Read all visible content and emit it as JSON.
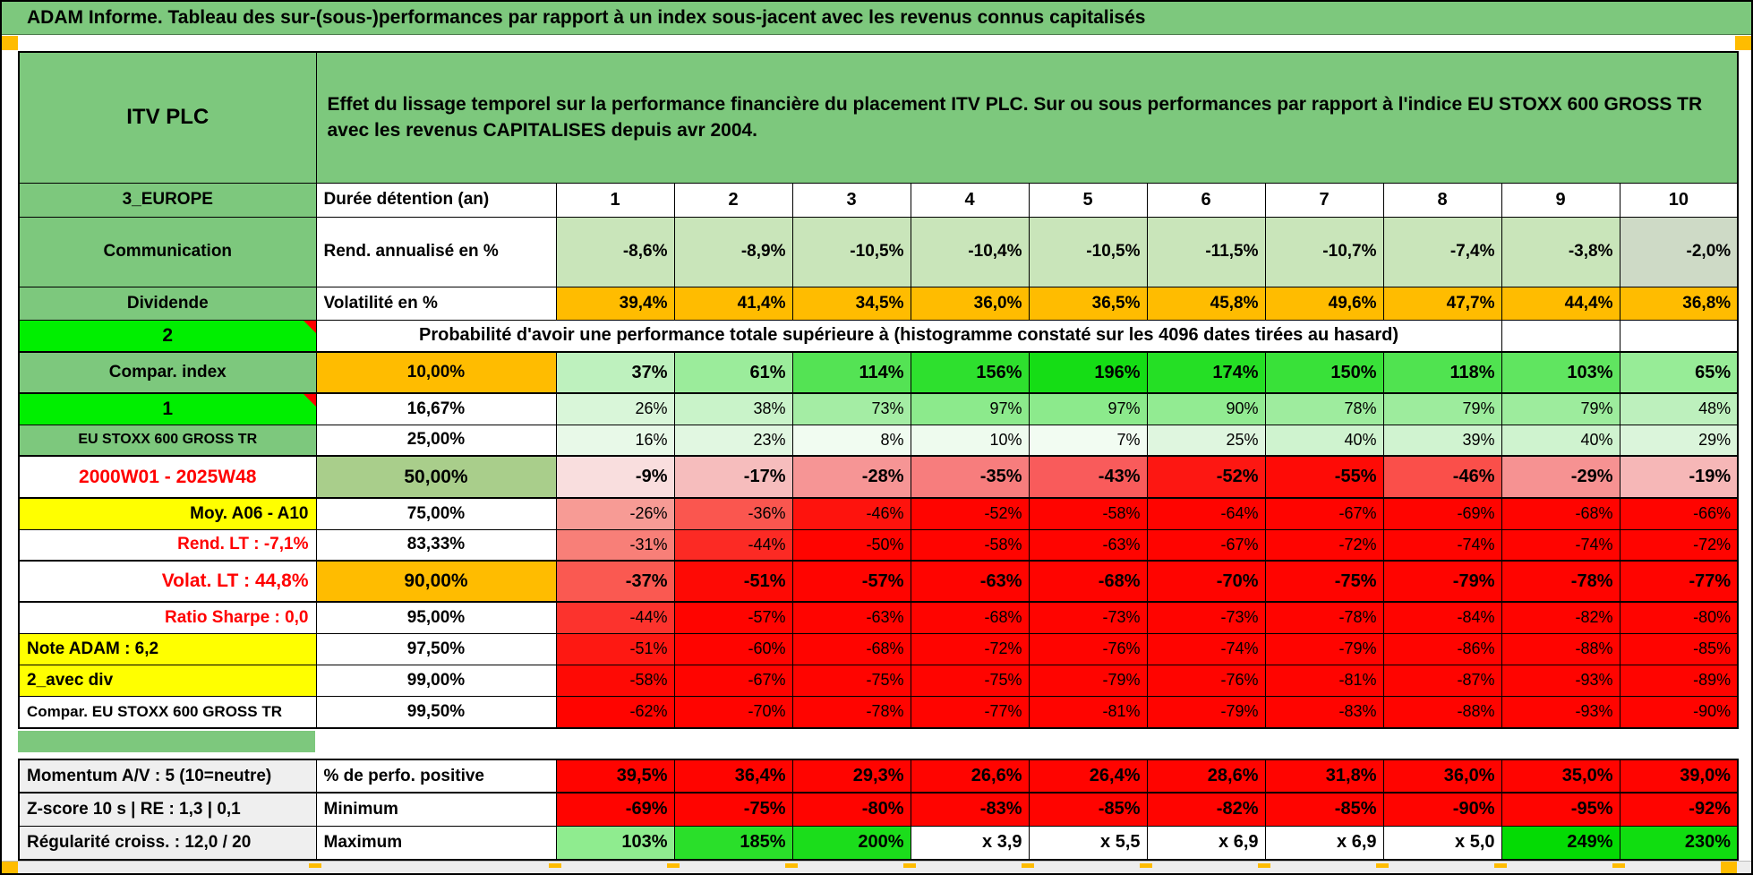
{
  "title_bar": "ADAM Informe. Tableau des sur-(sous-)performances par rapport à un index sous-jacent avec les revenus connus capitalisés",
  "header": {
    "instrument": "ITV PLC",
    "description": "Effet du lissage temporel sur la performance financière du placement ITV PLC. Sur ou sous performances par rapport à l'indice EU STOXX 600 GROSS TR avec les revenus CAPITALISES depuis avr 2004."
  },
  "colors": {
    "green_label": "#7DC87D",
    "bright_green": "#00EF00",
    "orange": "#FFBC00",
    "yellow": "#FFFF00",
    "full_red": "#FF0400",
    "light_green": "#C9E5BA",
    "mid_green_50pct": "#A9CE8B",
    "gray_label": "#EFEFEF",
    "red_text": "#FF0000"
  },
  "durations_label": "Durée détention (an)",
  "proba_note": "Probabilité d'avoir une performance totale supérieure à (histogramme constaté sur les 4096 dates tirées au hasard)",
  "main_rows": [
    {
      "key": "durations",
      "label": "3_EUROPE",
      "label_style": "green",
      "param": "Durée détention (an)",
      "param_style": "left",
      "val_style": "hdr",
      "vals": [
        "1",
        "2",
        "3",
        "4",
        "5",
        "6",
        "7",
        "8",
        "9",
        "10"
      ],
      "vbg": "#FFFFFF"
    },
    {
      "key": "rend",
      "label": "Communication",
      "label_style": "green",
      "param": "Rend. annualisé en %",
      "param_style": "left",
      "val_style": "b19",
      "vals": [
        "-8,6%",
        "-8,9%",
        "-10,5%",
        "-10,4%",
        "-10,5%",
        "-11,5%",
        "-10,7%",
        "-7,4%",
        "-3,8%",
        "-2,0%"
      ],
      "bgs": [
        "#C9E5BA",
        "#C9E5BA",
        "#C9E5BA",
        "#C9E5BA",
        "#C9E5BA",
        "#C9E5BA",
        "#C9E5BA",
        "#C9E5BA",
        "#C9E5BA",
        "#CEDAC6"
      ]
    },
    {
      "key": "volat",
      "label": "Dividende",
      "label_style": "green",
      "param": "Volatilité en %",
      "param_style": "left",
      "val_style": "b19",
      "vals": [
        "39,4%",
        "41,4%",
        "34,5%",
        "36,0%",
        "36,5%",
        "45,8%",
        "49,6%",
        "47,7%",
        "44,4%",
        "36,8%"
      ],
      "vbg": "#FFBC00"
    },
    {
      "key": "proba",
      "label": "2",
      "label_style": "bright",
      "merged_note": true
    },
    {
      "key": "p10",
      "label": "Compar. index",
      "label_style": "green",
      "param": "10,00%",
      "param_style": "orange",
      "val_style": "bold",
      "vals": [
        "37%",
        "61%",
        "114%",
        "156%",
        "196%",
        "174%",
        "150%",
        "118%",
        "103%",
        "65%"
      ],
      "bgs": [
        "#BEF1BE",
        "#9BEC9B",
        "#54E354",
        "#2EE02E",
        "#15DD15",
        "#25DF25",
        "#39E139",
        "#50E350",
        "#60E560",
        "#97EC97"
      ]
    },
    {
      "key": "p16",
      "label": "1",
      "label_style": "bright",
      "param": "16,67%",
      "param_style": "center",
      "val_style": "normal",
      "vals": [
        "26%",
        "38%",
        "73%",
        "97%",
        "97%",
        "90%",
        "78%",
        "79%",
        "79%",
        "48%"
      ],
      "bgs": [
        "#D9F6D9",
        "#C9F3C9",
        "#A4EDA4",
        "#8CEA8C",
        "#8CEA8C",
        "#92EB92",
        "#9EEC9E",
        "#9DEC9D",
        "#9DEC9D",
        "#BDF0BD"
      ]
    },
    {
      "key": "p25",
      "label": "EU STOXX 600 GROSS TR",
      "label_style": "green_small",
      "param": "25,00%",
      "param_style": "center",
      "val_style": "normal",
      "vals": [
        "16%",
        "23%",
        "8%",
        "10%",
        "7%",
        "25%",
        "40%",
        "39%",
        "40%",
        "29%"
      ],
      "bgs": [
        "#E8F9E8",
        "#E1F7E1",
        "#F1FCF1",
        "#EEFBEE",
        "#F2FCF2",
        "#DFF6DF",
        "#CFF3CF",
        "#D0F3D0",
        "#CFF3CF",
        "#DBF5DB"
      ]
    },
    {
      "key": "p50",
      "label": "2000W01 - 2025W48",
      "label_style": "red_c",
      "param": "50,00%",
      "param_style": "green50",
      "val_style": "bold",
      "vals": [
        "-9%",
        "-17%",
        "-28%",
        "-35%",
        "-43%",
        "-52%",
        "-55%",
        "-46%",
        "-29%",
        "-19%"
      ],
      "bgs": [
        "#F9DEDE",
        "#F6BDBD",
        "#F69595",
        "#F77D7D",
        "#F95B5B",
        "#FD1712",
        "#FE0B06",
        "#FA4F4A",
        "#F69292",
        "#F6B7B7"
      ]
    },
    {
      "key": "p75",
      "label": "Moy. A06 - A10",
      "label_style": "yellow_r",
      "param": "75,00%",
      "param_style": "center",
      "val_style": "normal",
      "vals": [
        "-26%",
        "-36%",
        "-46%",
        "-52%",
        "-58%",
        "-64%",
        "-67%",
        "-69%",
        "-68%",
        "-66%"
      ],
      "bgs": [
        "#F79B95",
        "#FA564F",
        "#FE130D",
        "#FF0400",
        "#FF0400",
        "#FF0400",
        "#FF0400",
        "#FF0400",
        "#FF0400",
        "#FF0400"
      ]
    },
    {
      "key": "p83",
      "label": "Rend. LT :   -7,1%",
      "label_style": "red_r",
      "param": "83,33%",
      "param_style": "center",
      "val_style": "normal",
      "vals": [
        "-31%",
        "-44%",
        "-50%",
        "-58%",
        "-63%",
        "-67%",
        "-72%",
        "-74%",
        "-74%",
        "-72%"
      ],
      "bgs": [
        "#F87F78",
        "#FC2A24",
        "#FF0400",
        "#FF0400",
        "#FF0400",
        "#FF0400",
        "#FF0400",
        "#FF0400",
        "#FF0400",
        "#FF0400"
      ]
    },
    {
      "key": "p90",
      "label": "Volat. LT :   44,8%",
      "label_style": "red_r_big",
      "param": "90,00%",
      "param_style": "orange_big",
      "val_style": "bold",
      "vals": [
        "-37%",
        "-51%",
        "-57%",
        "-63%",
        "-68%",
        "-70%",
        "-75%",
        "-79%",
        "-78%",
        "-77%"
      ],
      "bgs": [
        "#FA5951",
        "#FE0A05",
        "#FF0400",
        "#FF0400",
        "#FF0400",
        "#FF0400",
        "#FF0400",
        "#FF0400",
        "#FF0400",
        "#FF0400"
      ]
    },
    {
      "key": "p95",
      "label": "Ratio Sharpe :   0,0",
      "label_style": "red_r",
      "param": "95,00%",
      "param_style": "center",
      "val_style": "normal",
      "vals": [
        "-44%",
        "-57%",
        "-63%",
        "-68%",
        "-73%",
        "-73%",
        "-78%",
        "-84%",
        "-82%",
        "-80%"
      ],
      "bgs": [
        "#FC332D",
        "#FF0400",
        "#FF0400",
        "#FF0400",
        "#FF0400",
        "#FF0400",
        "#FF0400",
        "#FF0400",
        "#FF0400",
        "#FF0400"
      ]
    },
    {
      "key": "p97",
      "label": "Note ADAM : 6,2",
      "label_style": "yellow_l",
      "param": "97,50%",
      "param_style": "center",
      "val_style": "normal",
      "vals": [
        "-51%",
        "-60%",
        "-68%",
        "-72%",
        "-76%",
        "-74%",
        "-79%",
        "-86%",
        "-88%",
        "-85%"
      ],
      "bgs": [
        "#FE1812",
        "#FF0400",
        "#FF0400",
        "#FF0400",
        "#FF0400",
        "#FF0400",
        "#FF0400",
        "#FF0400",
        "#FF0400",
        "#FF0400"
      ]
    },
    {
      "key": "p99",
      "label": "2_avec div",
      "label_style": "yellow_l",
      "param": "99,00%",
      "param_style": "center",
      "val_style": "normal",
      "vals": [
        "-58%",
        "-67%",
        "-75%",
        "-75%",
        "-79%",
        "-76%",
        "-81%",
        "-87%",
        "-93%",
        "-89%"
      ],
      "bgs": [
        "#FE0A05",
        "#FF0400",
        "#FF0400",
        "#FF0400",
        "#FF0400",
        "#FF0400",
        "#FF0400",
        "#FF0400",
        "#FF0400",
        "#FF0400"
      ]
    },
    {
      "key": "p995",
      "label": "Compar. EU STOXX 600 GROSS TR",
      "label_style": "white_l",
      "param": "99,50%",
      "param_style": "center",
      "val_style": "normal",
      "vals": [
        "-62%",
        "-70%",
        "-78%",
        "-77%",
        "-81%",
        "-79%",
        "-83%",
        "-88%",
        "-93%",
        "-90%"
      ],
      "vbg": "#FF0400"
    }
  ],
  "stats_rows": [
    {
      "key": "perfpos",
      "label": "Momentum A/V : 5 (10=neutre)",
      "label_style": "gray_l",
      "param": "% de perfo. positive",
      "param_style": "left",
      "val_style": "bold",
      "vals": [
        "39,5%",
        "36,4%",
        "29,3%",
        "26,6%",
        "26,4%",
        "28,6%",
        "31,8%",
        "36,0%",
        "35,0%",
        "39,0%"
      ],
      "vbg": "#FF0400"
    },
    {
      "key": "min",
      "label": "Z-score 10 s | RE : 1,3 | 0,1",
      "label_style": "gray_l",
      "param": "Minimum",
      "param_style": "left",
      "val_style": "bold",
      "vals": [
        "-69%",
        "-75%",
        "-80%",
        "-83%",
        "-85%",
        "-82%",
        "-85%",
        "-90%",
        "-95%",
        "-92%"
      ],
      "vbg": "#FF0400"
    },
    {
      "key": "max",
      "label": "Régularité croiss. : 12,0 / 20",
      "label_style": "gray_l",
      "param": "Maximum",
      "param_style": "left",
      "val_style": "bold",
      "vals": [
        "103%",
        "185%",
        "200%",
        "x 3,9",
        "x 5,5",
        "x 6,9",
        "x 6,9",
        "x 5,0",
        "249%",
        "230%"
      ],
      "bgs": [
        "#8FEC8F",
        "#2ADF2A",
        "#1BDD1B",
        "#FFFFFF",
        "#FFFFFF",
        "#FFFFFF",
        "#FFFFFF",
        "#FFFFFF",
        "#04DB04",
        "#10DD10"
      ]
    }
  ]
}
